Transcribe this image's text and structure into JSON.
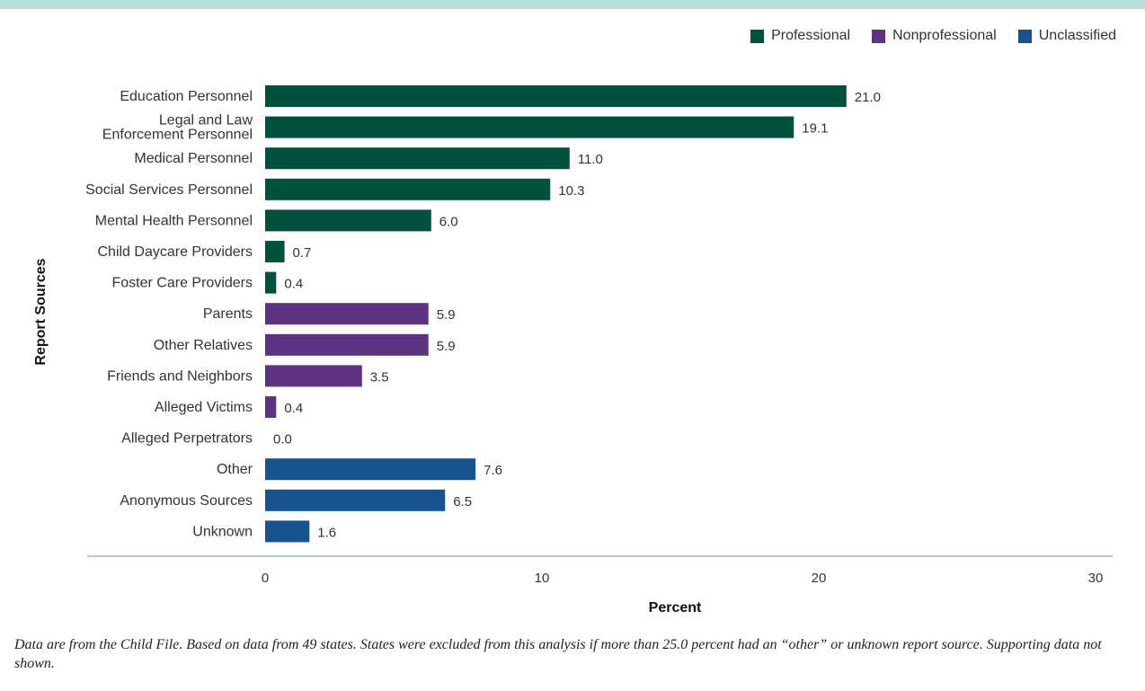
{
  "chart_data": {
    "type": "bar",
    "orientation": "horizontal",
    "xlabel": "Percent",
    "ylabel": "Report Sources",
    "xlim": [
      0,
      30
    ],
    "xticks": [
      "0",
      "10",
      "20",
      "30"
    ],
    "legend_position": "top-right",
    "legend": [
      {
        "name": "Professional",
        "color": "#00513d"
      },
      {
        "name": "Nonprofessional",
        "color": "#5e3382"
      },
      {
        "name": "Unclassified",
        "color": "#175391"
      }
    ],
    "categories": [
      {
        "label": [
          "Education Personnel"
        ],
        "value": 21.0,
        "display": "21.0",
        "group": 0
      },
      {
        "label": [
          "Legal and Law",
          "Enforcement Personnel"
        ],
        "value": 19.1,
        "display": "19.1",
        "group": 0
      },
      {
        "label": [
          "Medical Personnel"
        ],
        "value": 11.0,
        "display": "11.0",
        "group": 0
      },
      {
        "label": [
          "Social Services Personnel"
        ],
        "value": 10.3,
        "display": "10.3",
        "group": 0
      },
      {
        "label": [
          "Mental Health Personnel"
        ],
        "value": 6.0,
        "display": "6.0",
        "group": 0
      },
      {
        "label": [
          "Child Daycare Providers"
        ],
        "value": 0.7,
        "display": "0.7",
        "group": 0
      },
      {
        "label": [
          "Foster Care Providers"
        ],
        "value": 0.4,
        "display": "0.4",
        "group": 0
      },
      {
        "label": [
          "Parents"
        ],
        "value": 5.9,
        "display": "5.9",
        "group": 1
      },
      {
        "label": [
          "Other Relatives"
        ],
        "value": 5.9,
        "display": "5.9",
        "group": 1
      },
      {
        "label": [
          "Friends and Neighbors"
        ],
        "value": 3.5,
        "display": "3.5",
        "group": 1
      },
      {
        "label": [
          "Alleged Victims"
        ],
        "value": 0.4,
        "display": "0.4",
        "group": 1
      },
      {
        "label": [
          "Alleged Perpetrators"
        ],
        "value": 0.0,
        "display": "0.0",
        "group": 1
      },
      {
        "label": [
          "Other"
        ],
        "value": 7.6,
        "display": "7.6",
        "group": 2
      },
      {
        "label": [
          "Anonymous Sources"
        ],
        "value": 6.5,
        "display": "6.5",
        "group": 2
      },
      {
        "label": [
          "Unknown"
        ],
        "value": 1.6,
        "display": "1.6",
        "group": 2
      }
    ]
  },
  "footnote": "Data are from the Child File. Based on data from 49 states. States were excluded from this analysis if more than 25.0 percent had an “other” or unknown report source. Supporting data not shown."
}
